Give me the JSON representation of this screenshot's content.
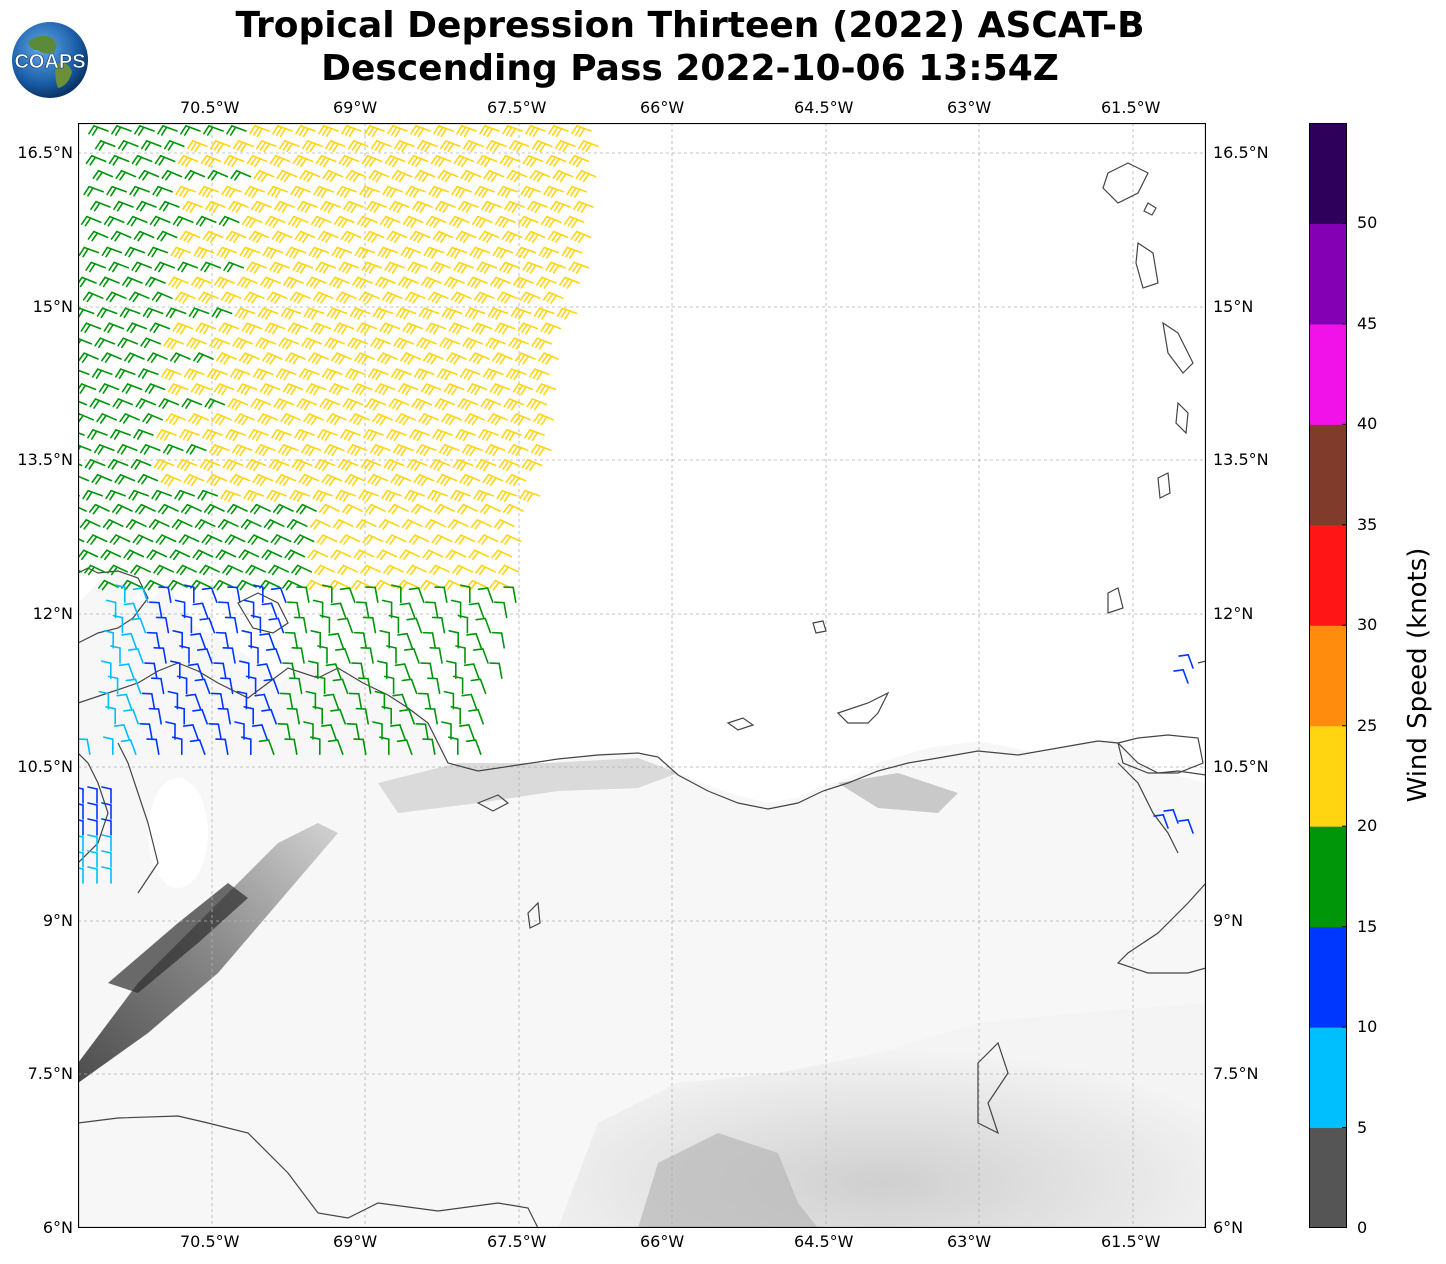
{
  "title": {
    "line1": "Tropical Depression Thirteen (2022) ASCAT-B",
    "line2": "Descending Pass 2022-10-06 13:54Z"
  },
  "logo": {
    "text": "COAPS",
    "icon": "globe-logo-icon"
  },
  "axes": {
    "lon_labels": [
      "70.5°W",
      "69°W",
      "67.5°W",
      "66°W",
      "64.5°W",
      "63°W",
      "61.5°W"
    ],
    "lat_labels": [
      "16.5°N",
      "15°N",
      "13.5°N",
      "12°N",
      "10.5°N",
      "9°N",
      "7.5°N",
      "6°N"
    ],
    "gridlines": true
  },
  "colorbar": {
    "title": "Wind Speed (knots)",
    "tick_labels": [
      "0",
      "5",
      "10",
      "15",
      "20",
      "25",
      "30",
      "35",
      "40",
      "45",
      "50"
    ],
    "colors": [
      "#555555",
      "#00bfff",
      "#0037ff",
      "#00960a",
      "#ffd511",
      "#ff8c0d",
      "#ff1515",
      "#803b2b",
      "#f012e8",
      "#8300b4",
      "#2e005c"
    ]
  },
  "map_colors": {
    "coastline": "#444444",
    "grid": "#b0b0b0",
    "ocean": "#ffffff"
  }
}
